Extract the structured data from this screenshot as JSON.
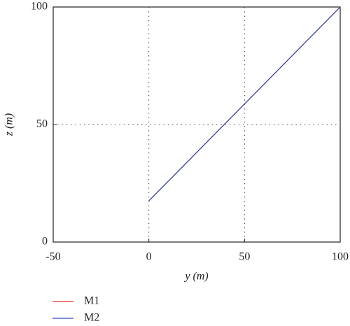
{
  "chart_data": {
    "type": "line",
    "xlabel": "y (m)",
    "ylabel": "z (m)",
    "x": [
      0,
      100
    ],
    "series": [
      {
        "name": "M1",
        "color": "#e8302a",
        "values": [
          17.5,
          100
        ]
      },
      {
        "name": "M2",
        "color": "#2a4bb0",
        "values": [
          17.5,
          100
        ]
      }
    ],
    "xlim": [
      -50,
      100
    ],
    "xticks": [
      -50,
      0,
      50,
      100
    ],
    "ylim": [
      0,
      100
    ],
    "yticks": [
      0,
      50,
      100
    ],
    "grid": true,
    "legend": "bottom-left"
  }
}
